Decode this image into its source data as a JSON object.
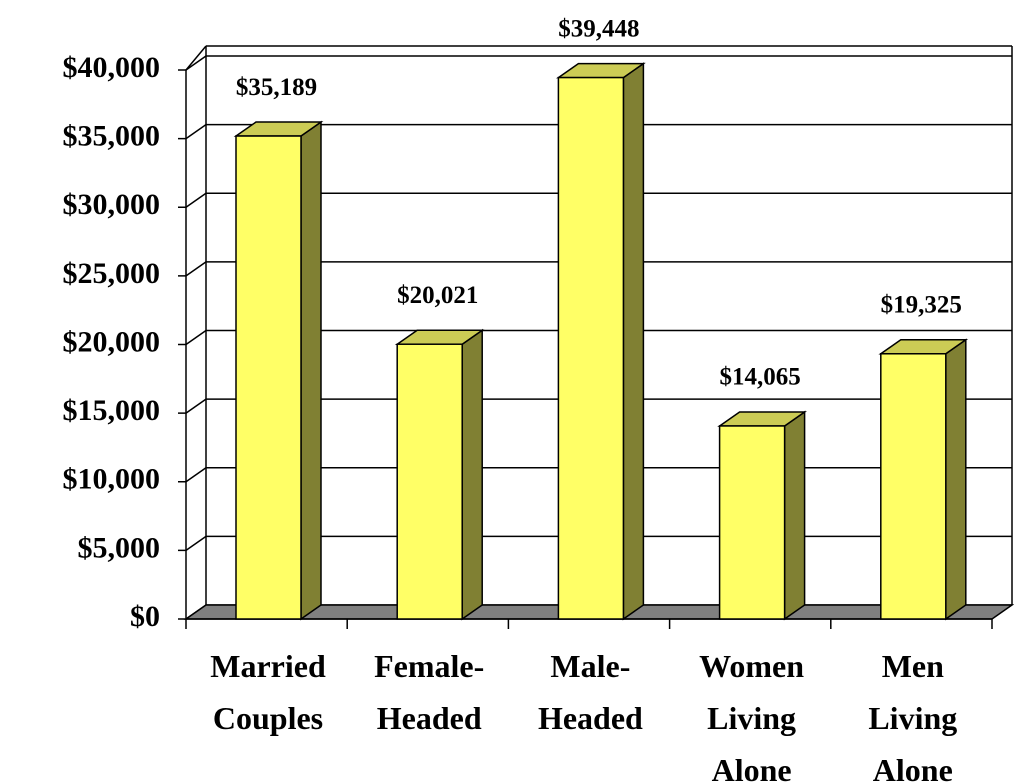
{
  "chart_data": {
    "type": "bar",
    "categories": [
      "Married Couples",
      "Female-Headed",
      "Male-Headed",
      "Women Living Alone",
      "Men Living Alone"
    ],
    "values": [
      35189,
      20021,
      39448,
      14065,
      19325
    ],
    "value_labels": [
      "$35,189",
      "$20,021",
      "$39,448",
      "$14,065",
      "$19,325"
    ],
    "color": "#ffff66",
    "ylim": [
      0,
      40000
    ],
    "yticks": [
      {
        "value": 0,
        "label": "$0"
      },
      {
        "value": 5000,
        "label": "$5,000"
      },
      {
        "value": 10000,
        "label": "$10,000"
      },
      {
        "value": 15000,
        "label": "$15,000"
      },
      {
        "value": 20000,
        "label": "$20,000"
      },
      {
        "value": 25000,
        "label": "$25,000"
      },
      {
        "value": 30000,
        "label": "$30,000"
      },
      {
        "value": 35000,
        "label": "$35,000"
      },
      {
        "value": 40000,
        "label": "$40,000"
      }
    ],
    "grid": true
  }
}
